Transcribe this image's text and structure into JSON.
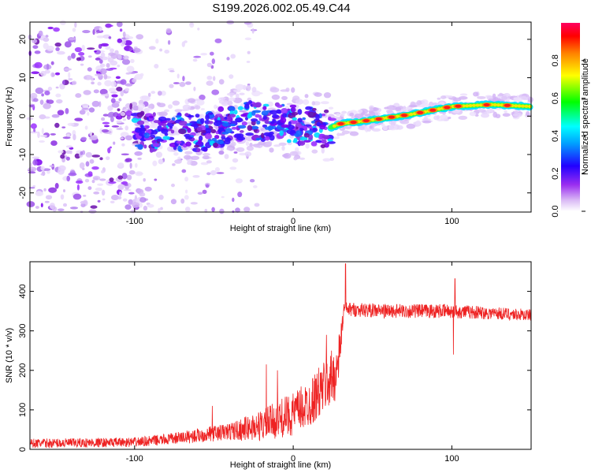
{
  "title": "S199.2026.002.05.49.C44",
  "chart_data": [
    {
      "type": "heatmap",
      "name": "spectrogram",
      "xlabel": "Height of straight line (km)",
      "ylabel": "Frequency (Hz)",
      "xlim": [
        -166,
        150
      ],
      "ylim": [
        -25,
        24.5
      ],
      "xticks": [
        -100,
        0,
        100
      ],
      "yticks": [
        -20,
        -10,
        0,
        10,
        20
      ],
      "colorbar": {
        "label": "Normalized spectral amplitude",
        "range": [
          0,
          1
        ],
        "ticks": [
          "0.0",
          "0.2",
          "0.4",
          "0.6",
          "0.8"
        ],
        "tick_values": [
          0,
          0.2,
          0.4,
          0.6,
          0.8
        ]
      },
      "ridge": [
        {
          "x": -100,
          "y": -4.0
        },
        {
          "x": -60,
          "y": -4.5
        },
        {
          "x": -30,
          "y": -1.0
        },
        {
          "x": 0,
          "y": -2.0
        },
        {
          "x": 20,
          "y": -3.5
        },
        {
          "x": 30,
          "y": -2.0
        },
        {
          "x": 50,
          "y": -1.0
        },
        {
          "x": 75,
          "y": 0.5
        },
        {
          "x": 100,
          "y": 2.5
        },
        {
          "x": 125,
          "y": 3.0
        },
        {
          "x": 150,
          "y": 2.5
        }
      ]
    },
    {
      "type": "line",
      "name": "snr",
      "xlabel": "Height of straight line (km)",
      "ylabel": "SNR (10 * v/v)",
      "xlim": [
        -166,
        150
      ],
      "ylim": [
        0,
        475
      ],
      "xticks": [
        -100,
        0,
        100
      ],
      "yticks": [
        0,
        100,
        200,
        300,
        400
      ],
      "color": "#ee2222",
      "trend": [
        {
          "x": -166,
          "y": 15,
          "noise": 12
        },
        {
          "x": -100,
          "y": 18,
          "noise": 12
        },
        {
          "x": -80,
          "y": 25,
          "noise": 14
        },
        {
          "x": -60,
          "y": 35,
          "noise": 18
        },
        {
          "x": -40,
          "y": 45,
          "noise": 22
        },
        {
          "x": -20,
          "y": 60,
          "noise": 40
        },
        {
          "x": 0,
          "y": 90,
          "noise": 55
        },
        {
          "x": 10,
          "y": 115,
          "noise": 60
        },
        {
          "x": 20,
          "y": 160,
          "noise": 70
        },
        {
          "x": 28,
          "y": 200,
          "noise": 70
        },
        {
          "x": 32,
          "y": 355,
          "noise": 18
        },
        {
          "x": 60,
          "y": 350,
          "noise": 18
        },
        {
          "x": 100,
          "y": 350,
          "noise": 18
        },
        {
          "x": 150,
          "y": 340,
          "noise": 15
        }
      ],
      "spikes": [
        {
          "x": -51,
          "y": 110
        },
        {
          "x": -17,
          "y": 215
        },
        {
          "x": -10,
          "y": 200
        },
        {
          "x": 21,
          "y": 290
        },
        {
          "x": 33,
          "y": 470
        },
        {
          "x": 101,
          "y": 240
        },
        {
          "x": 102,
          "y": 432
        }
      ]
    }
  ]
}
